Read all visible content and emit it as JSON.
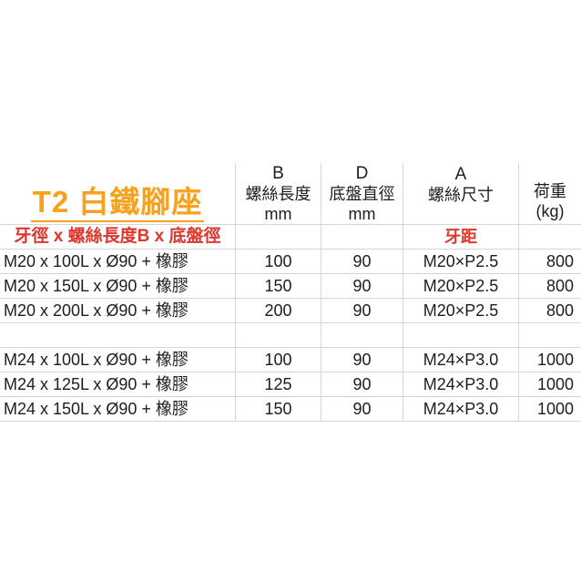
{
  "page": {
    "background": "#FFFFFF"
  },
  "title": {
    "text": "T2 白鐵腳座",
    "color": "#F7A11C"
  },
  "subtitle": {
    "text": "牙徑 x 螺絲長度B x 底盤徑",
    "color": "#E0352B"
  },
  "table": {
    "header": {
      "col_b": {
        "line1": "B",
        "line2": "螺絲長度",
        "line3": "mm"
      },
      "col_d": {
        "line1": "D",
        "line2": "底盤直徑",
        "line3": "mm"
      },
      "col_a": {
        "line1": "A",
        "line2": "螺絲尺寸"
      },
      "col_load": {
        "line1": "荷重",
        "line2": "(kg)"
      }
    },
    "subheader": {
      "pitch_label": "牙距"
    },
    "groups": [
      {
        "rows": [
          {
            "spec": "M20 x 100L x Ø90 + 橡膠",
            "b": "100",
            "d": "90",
            "a": "M20×P2.5",
            "load": "800"
          },
          {
            "spec": "M20 x 150L x Ø90 + 橡膠",
            "b": "150",
            "d": "90",
            "a": "M20×P2.5",
            "load": "800"
          },
          {
            "spec": "M20 x 200L x Ø90 + 橡膠",
            "b": "200",
            "d": "90",
            "a": "M20×P2.5",
            "load": "800"
          }
        ]
      },
      {
        "rows": [
          {
            "spec": "M24 x 100L x Ø90 + 橡膠",
            "b": "100",
            "d": "90",
            "a": "M24×P3.0",
            "load": "1000"
          },
          {
            "spec": "M24 x 125L x Ø90 + 橡膠",
            "b": "125",
            "d": "90",
            "a": "M24×P3.0",
            "load": "1000"
          },
          {
            "spec": "M24 x 150L x Ø90 + 橡膠",
            "b": "150",
            "d": "90",
            "a": "M24×P3.0",
            "load": "1000"
          }
        ]
      }
    ],
    "grid_color": "#D6D6D6",
    "text_color": "#1D1D1D"
  }
}
